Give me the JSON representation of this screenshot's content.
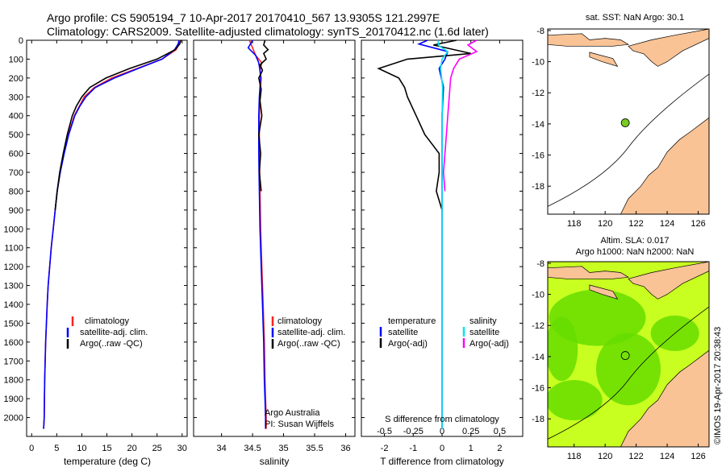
{
  "header": {
    "line1": "Argo profile: CS 5905194_7 10-Apr-2017 20170410_567 13.9305S 121.2997E",
    "line2": "Climatology: CARS2009. Satellite-adjusted climatology: synTS_20170412.nc (1.6d later)"
  },
  "colors": {
    "climatology": "#ff2020",
    "satellite": "#0000ff",
    "argo": "#000000",
    "sat_salinity": "#00e5ee",
    "argo_salinity_adj": "#ff00ff",
    "land": "#f9c396",
    "sla_high": "#66dd00",
    "sla_low": "#c8ff20"
  },
  "chart_data": [
    {
      "type": "line",
      "id": "temperature",
      "xlabel": "temperature (deg C)",
      "ylim": [
        2100,
        0
      ],
      "xlim": [
        -1,
        31
      ],
      "xticks": [
        "0",
        "5",
        "10",
        "15",
        "20",
        "25",
        "30"
      ],
      "yticks": [
        "0",
        "100",
        "200",
        "300",
        "400",
        "500",
        "600",
        "700",
        "800",
        "900",
        "1000",
        "1100",
        "1200",
        "1300",
        "1400",
        "1500",
        "1600",
        "1700",
        "1800",
        "1900",
        "2000"
      ],
      "legend": [
        "climatology",
        "satellite-adj. clim.",
        "Argo(..raw -QC)"
      ],
      "series": [
        {
          "name": "climatology",
          "color": "#ff2020",
          "x": [
            29.6,
            29.4,
            28.8,
            26,
            21,
            16,
            12.5,
            10.5,
            9.5,
            8.5,
            7.3,
            6.4,
            5.7,
            5.1,
            4.7,
            4.3,
            3.9,
            3.6,
            3.3,
            3.1,
            2.8,
            2.6,
            2.5,
            2.4
          ],
          "y": [
            0,
            20,
            50,
            100,
            150,
            200,
            250,
            300,
            350,
            400,
            500,
            600,
            700,
            800,
            900,
            1000,
            1100,
            1200,
            1300,
            1400,
            1600,
            1800,
            2000,
            2060
          ]
        },
        {
          "name": "satellite-adj. clim.",
          "color": "#0000ff",
          "x": [
            29.4,
            29.2,
            28.5,
            26,
            21.2,
            16.5,
            12.7,
            10.8,
            9.6,
            8.6,
            7.4,
            6.5,
            5.7,
            5.1,
            4.7,
            4.3,
            3.9,
            3.6,
            3.3,
            3.1,
            2.8,
            2.6,
            2.5,
            2.4
          ],
          "y": [
            0,
            20,
            50,
            100,
            150,
            200,
            250,
            300,
            350,
            400,
            500,
            600,
            700,
            800,
            900,
            1000,
            1100,
            1200,
            1300,
            1400,
            1600,
            1800,
            2000,
            2060
          ]
        },
        {
          "name": "Argo(..raw -QC)",
          "color": "#000000",
          "x": [
            29.8,
            29.5,
            28.6,
            25,
            19.5,
            14.8,
            11.6,
            10,
            8.9,
            8.1,
            7.1,
            6.3,
            5.6,
            5.1,
            4.7
          ],
          "y": [
            0,
            20,
            50,
            100,
            150,
            200,
            250,
            300,
            350,
            400,
            500,
            600,
            700,
            800,
            900
          ]
        }
      ]
    },
    {
      "type": "line",
      "id": "salinity",
      "xlabel": "salinity",
      "ylim": [
        2100,
        0
      ],
      "xlim": [
        33.55,
        36.15
      ],
      "xticks": [
        "34",
        "34.5",
        "35",
        "35.5",
        "36"
      ],
      "legend": [
        "climatology",
        "satellite-adj. clim.",
        "Argo(..raw -QC)"
      ],
      "annotation": [
        "Argo Australia",
        "PI: Susan Wijffels"
      ],
      "series": [
        {
          "name": "climatology",
          "color": "#ff2020",
          "x": [
            34.45,
            34.5,
            34.55,
            34.65,
            34.62,
            34.64,
            34.62,
            34.61,
            34.61,
            34.62,
            34.63,
            34.65,
            34.67,
            34.69,
            34.7,
            34.71,
            34.72,
            34.72
          ],
          "y": [
            0,
            40,
            80,
            120,
            160,
            200,
            300,
            400,
            600,
            800,
            1000,
            1200,
            1400,
            1600,
            1800,
            1900,
            2000,
            2060
          ]
        },
        {
          "name": "satellite-adj. clim.",
          "color": "#0000ff",
          "x": [
            34.5,
            34.43,
            34.55,
            34.6,
            34.62,
            34.63,
            34.61,
            34.6,
            34.6,
            34.61,
            34.62,
            34.64,
            34.66,
            34.68,
            34.69,
            34.7,
            34.71,
            34.71
          ],
          "y": [
            0,
            40,
            80,
            120,
            160,
            200,
            300,
            400,
            600,
            800,
            1000,
            1200,
            1400,
            1600,
            1800,
            1900,
            2000,
            2060
          ]
        },
        {
          "name": "Argo(..raw -QC)",
          "color": "#000000",
          "x": [
            34.7,
            34.68,
            34.75,
            34.68,
            34.72,
            34.62,
            34.66,
            34.6,
            34.64,
            34.62,
            34.65,
            34.6,
            34.63,
            34.61,
            34.64
          ],
          "y": [
            0,
            25,
            50,
            70,
            100,
            130,
            160,
            200,
            260,
            320,
            400,
            500,
            600,
            700,
            800
          ]
        }
      ]
    },
    {
      "type": "line",
      "id": "difference",
      "xlabel": "T difference from climatology",
      "xlabel2": "S difference from climatology",
      "xlim": [
        -2.8,
        2.8
      ],
      "ylim": [
        2100,
        0
      ],
      "xticks": [
        "-2",
        "-1",
        "0",
        "1",
        "2"
      ],
      "xticks2": [
        "-0.5",
        "-0.25",
        "0",
        "0.25",
        "0.5"
      ],
      "legend_temperature": [
        "temperature",
        "satellite",
        "Argo(-adj)"
      ],
      "legend_salinity": [
        "salinity",
        "satellite",
        "Argo(-adj)"
      ],
      "series": [
        {
          "name": "satellite",
          "color": "#0000ff",
          "x": [
            -0.5,
            -0.8,
            0.2,
            0.1,
            -0.1,
            0.05,
            0,
            0,
            0,
            0
          ],
          "y": [
            0,
            20,
            60,
            100,
            150,
            250,
            400,
            700,
            1200,
            2060
          ]
        },
        {
          "name": "Argo(-adj)",
          "color": "#000000",
          "x": [
            0.5,
            -0.3,
            1,
            -1.2,
            -2.2,
            -1.5,
            -1.3,
            -1.2,
            -0.9,
            -0.6,
            -0.3,
            -0.1,
            -0.1,
            -0.2,
            0
          ],
          "y": [
            0,
            25,
            70,
            100,
            150,
            200,
            250,
            300,
            400,
            500,
            560,
            600,
            700,
            800,
            900
          ]
        },
        {
          "name": "satellite",
          "color": "#00e5ee",
          "x": [
            -0.15,
            -0.1,
            0.2,
            0,
            -0.05,
            0.02,
            0,
            0,
            0,
            0
          ],
          "y": [
            0,
            30,
            60,
            100,
            150,
            250,
            400,
            700,
            1200,
            2060
          ]
        },
        {
          "name": "Argo(-adj)",
          "color": "#ff00ff",
          "x": [
            1.2,
            0.9,
            1.2,
            0.6,
            0.4,
            0.3,
            0.25,
            0.2,
            0.15,
            0.1,
            0.05,
            0.1
          ],
          "y": [
            0,
            25,
            60,
            100,
            150,
            200,
            300,
            400,
            500,
            600,
            700,
            800
          ]
        }
      ]
    },
    {
      "type": "map",
      "id": "sst_map",
      "title": "sat. SST: NaN Argo: 30.1",
      "xticks": [
        "118",
        "120",
        "122",
        "124",
        "126"
      ],
      "yticks": [
        "-8",
        "-10",
        "-12",
        "-14",
        "-16",
        "-18"
      ],
      "xlim": [
        116.3,
        126.7
      ],
      "ylim": [
        -19.8,
        -7.9
      ],
      "marker": {
        "lon": 121.3,
        "lat": -13.93
      }
    },
    {
      "type": "heatmap",
      "id": "sla_map",
      "title_line1": "Altim. SLA: 0.017",
      "title_line2": "Argo h1000: NaN h2000: NaN",
      "xticks": [
        "118",
        "120",
        "122",
        "124",
        "126"
      ],
      "yticks": [
        "-8",
        "-10",
        "-12",
        "-14",
        "-16",
        "-18"
      ],
      "xlim": [
        116.3,
        126.7
      ],
      "ylim": [
        -19.8,
        -7.9
      ],
      "marker": {
        "lon": 121.3,
        "lat": -13.93
      }
    }
  ],
  "credit": "©IMOS 19-Apr-2017 20:38:43"
}
